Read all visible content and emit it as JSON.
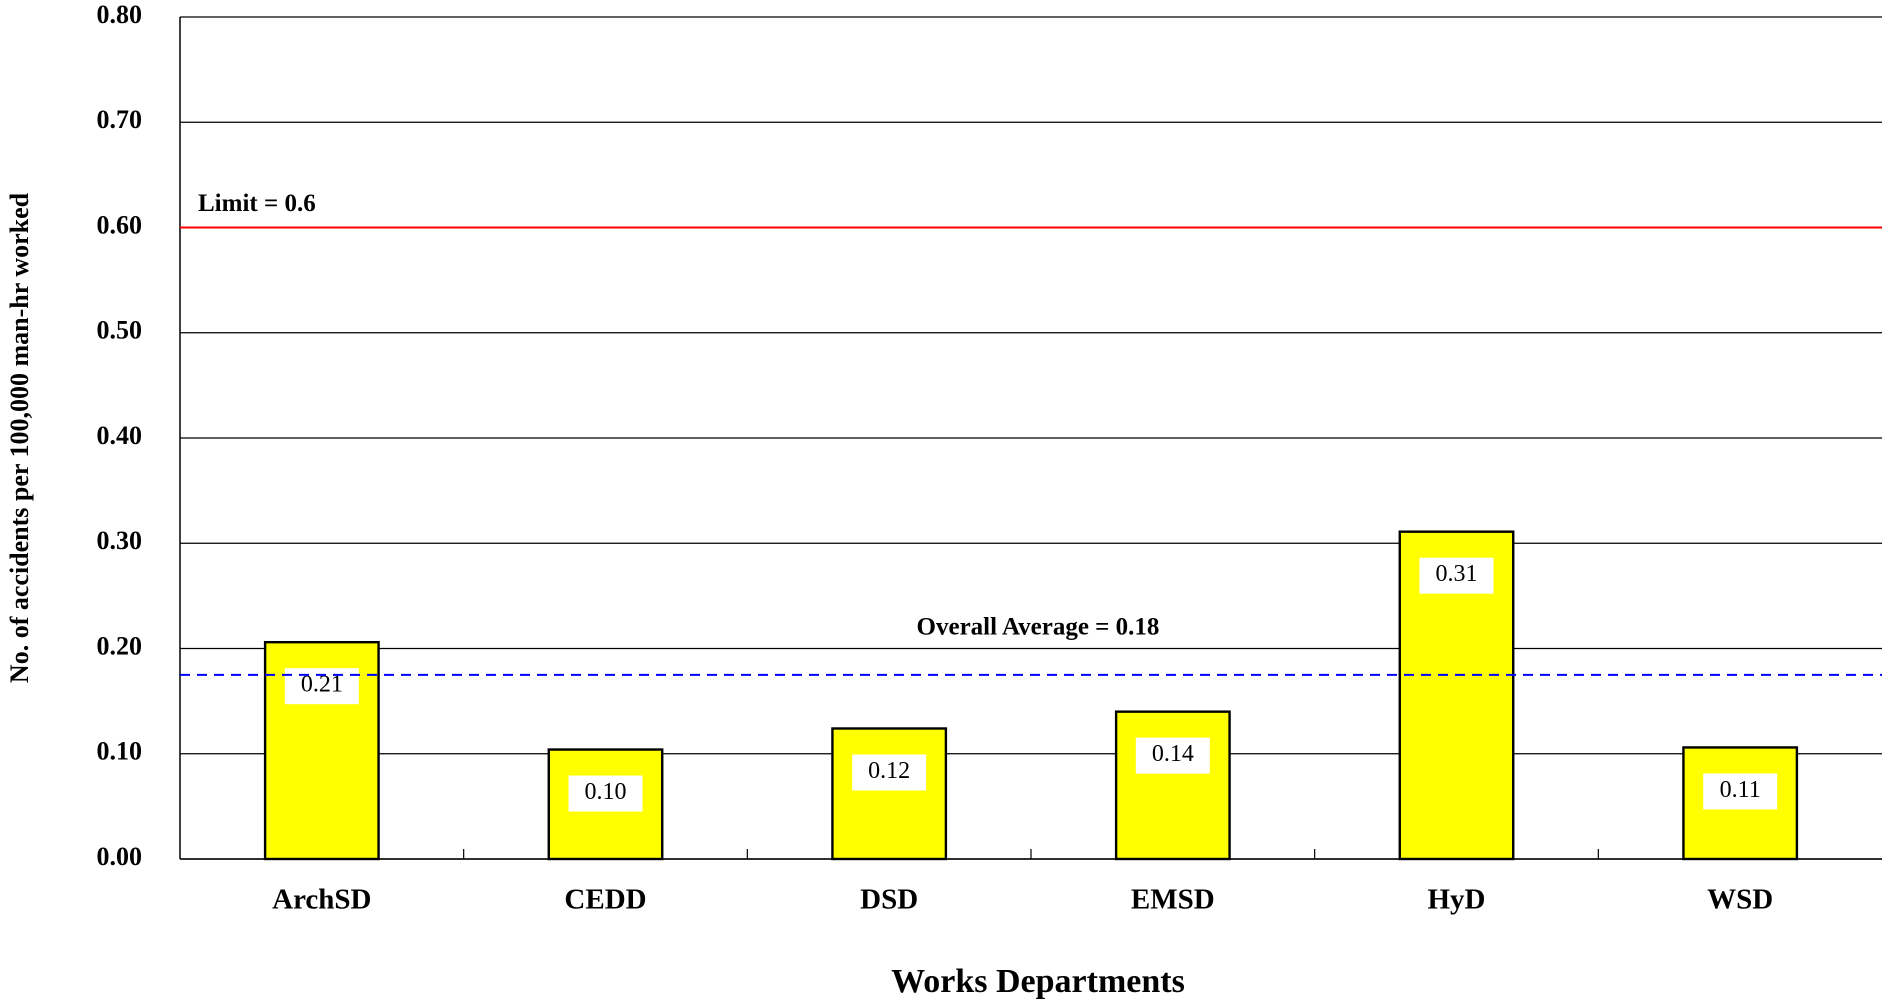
{
  "chart_data": {
    "type": "bar",
    "x_label": "Works Departments",
    "y_label": "No. of accidents per 100,000 man-hr worked",
    "categories": [
      "ArchSD",
      "CEDD",
      "DSD",
      "EMSD",
      "HyD",
      "WSD"
    ],
    "values": [
      0.206,
      0.104,
      0.124,
      0.14,
      0.311,
      0.106
    ],
    "value_labels": [
      "0.21",
      "0.10",
      "0.12",
      "0.14",
      "0.31",
      "0.11"
    ],
    "color": "#ffff00",
    "ylim": [
      0,
      0.8
    ],
    "yticks": [
      {
        "value": 0,
        "label": "0.00"
      },
      {
        "value": 0.1,
        "label": "0.10"
      },
      {
        "value": 0.2,
        "label": "0.20"
      },
      {
        "value": 0.3,
        "label": "0.30"
      },
      {
        "value": 0.4,
        "label": "0.40"
      },
      {
        "value": 0.5,
        "label": "0.50"
      },
      {
        "value": 0.6,
        "label": "0.60"
      },
      {
        "value": 0.7,
        "label": "0.70"
      },
      {
        "value": 0.8,
        "label": "0.80"
      }
    ],
    "grid": true,
    "reference_lines": [
      {
        "label": "Limit = 0.6",
        "value": 0.6,
        "color": "#ff0000",
        "style": "solid"
      },
      {
        "label": "Overall Average = 0.18",
        "value": 0.175,
        "color": "#0000ff",
        "style": "dashed"
      }
    ]
  }
}
